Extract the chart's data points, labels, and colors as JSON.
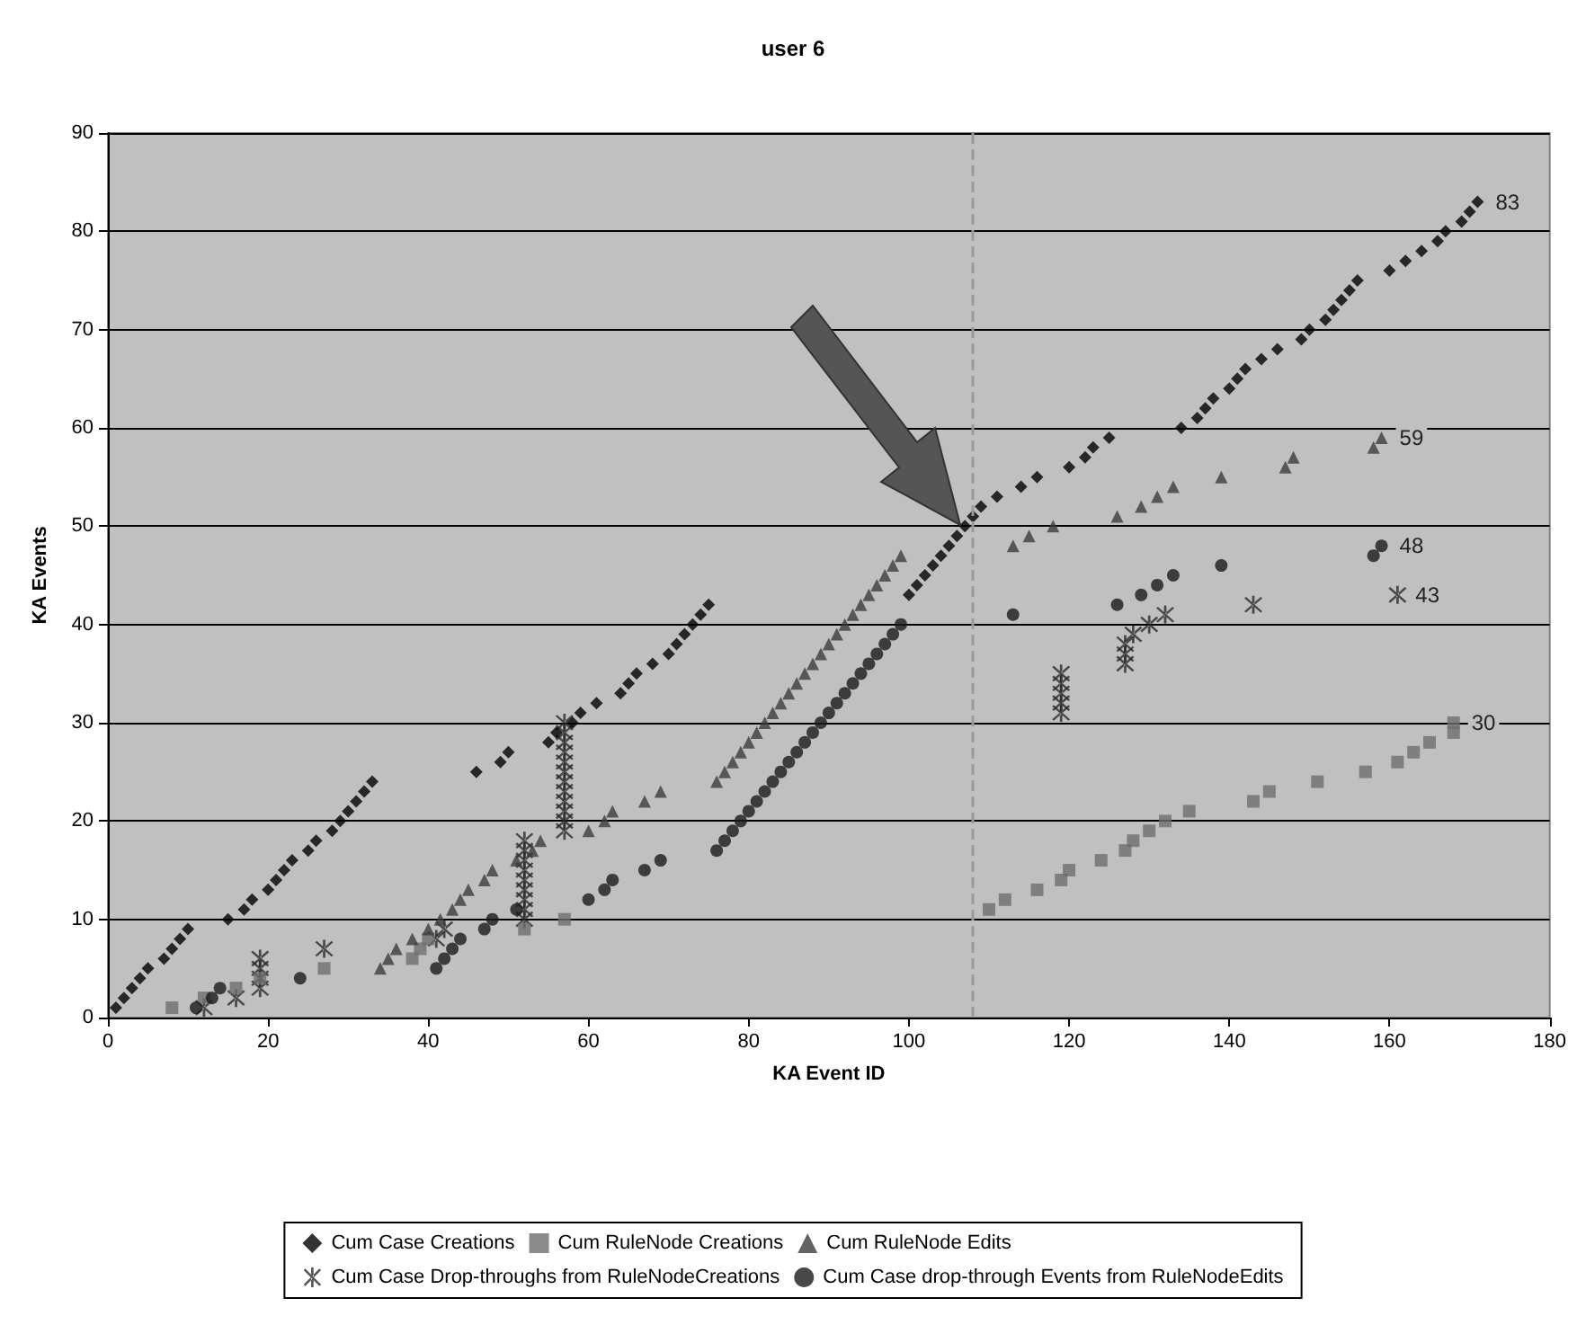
{
  "chart_data": {
    "type": "scatter",
    "title": "user 6",
    "xlabel": "KA Event ID",
    "ylabel": "KA Events",
    "xlim": [
      0,
      180
    ],
    "xticks": [
      0,
      20,
      40,
      60,
      80,
      100,
      120,
      140,
      160,
      180
    ],
    "ylim": [
      0,
      90
    ],
    "yticks": [
      0,
      10,
      20,
      30,
      40,
      50,
      60,
      70,
      80,
      90
    ],
    "grid": "y",
    "legend": "bottom",
    "series": [
      {
        "name": "Cum Case Creations",
        "color": "#000000",
        "marker": "diamond",
        "x": [
          1,
          2,
          3,
          4,
          5,
          7,
          8,
          9,
          10,
          15,
          17,
          18,
          20,
          21,
          22,
          23,
          25,
          26,
          28,
          29,
          30,
          31,
          32,
          33,
          46,
          49,
          50,
          55,
          56,
          58,
          59,
          61,
          64,
          65,
          66,
          68,
          70,
          71,
          72,
          73,
          74,
          75,
          100,
          101,
          102,
          103,
          104,
          105,
          106,
          107,
          108,
          109,
          111,
          114,
          116,
          120,
          122,
          123,
          125,
          134,
          136,
          137,
          138,
          140,
          141,
          142,
          144,
          146,
          149,
          150,
          152,
          153,
          154,
          155,
          156,
          160,
          162,
          164,
          166,
          167,
          169,
          170,
          171
        ],
        "values": [
          1,
          2,
          3,
          4,
          5,
          6,
          7,
          8,
          9,
          10,
          11,
          12,
          13,
          14,
          15,
          16,
          17,
          18,
          19,
          20,
          21,
          22,
          23,
          24,
          25,
          26,
          27,
          28,
          29,
          30,
          31,
          32,
          33,
          34,
          35,
          36,
          37,
          38,
          39,
          40,
          41,
          42,
          43,
          44,
          45,
          46,
          47,
          48,
          49,
          50,
          51,
          52,
          53,
          54,
          55,
          56,
          57,
          58,
          59,
          60,
          61,
          62,
          63,
          64,
          65,
          66,
          67,
          68,
          69,
          70,
          71,
          72,
          73,
          74,
          75,
          76,
          77,
          78,
          79,
          80,
          81,
          82,
          83
        ]
      },
      {
        "name": "Cum RuleNode Creations",
        "color": "#6e6e6e",
        "marker": "square",
        "x": [
          8,
          12,
          16,
          19,
          27,
          38,
          39,
          40,
          52,
          57,
          110,
          112,
          116,
          119,
          120,
          124,
          127,
          128,
          130,
          132,
          135,
          143,
          145,
          151,
          157,
          161,
          163,
          165,
          168,
          168
        ],
        "values": [
          1,
          2,
          3,
          4,
          5,
          6,
          7,
          8,
          9,
          10,
          11,
          12,
          13,
          14,
          15,
          16,
          17,
          18,
          19,
          20,
          21,
          22,
          23,
          24,
          25,
          26,
          27,
          28,
          29,
          30
        ]
      },
      {
        "name": "Cum RuleNode Edits",
        "color": "#3c3c3c",
        "marker": "triangle",
        "x": [
          34,
          35,
          36,
          38,
          40,
          41.5,
          43,
          44,
          45,
          47,
          48,
          51,
          53,
          54,
          60,
          62,
          63,
          67,
          69,
          76,
          77,
          78,
          79,
          80,
          81,
          82,
          83,
          84,
          85,
          86,
          87,
          88,
          89,
          90,
          91,
          92,
          93,
          94,
          95,
          96,
          97,
          98,
          99,
          113,
          115,
          118,
          126,
          129,
          131,
          133,
          139,
          147,
          148,
          158,
          159
        ],
        "values": [
          5,
          6,
          7,
          8,
          9,
          10,
          11,
          12,
          13,
          14,
          15,
          16,
          17,
          18,
          19,
          20,
          21,
          22,
          23,
          24,
          25,
          26,
          27,
          28,
          29,
          30,
          31,
          32,
          33,
          34,
          35,
          36,
          37,
          38,
          39,
          40,
          41,
          42,
          43,
          44,
          45,
          46,
          47,
          48,
          49,
          50,
          51,
          52,
          53,
          54,
          55,
          56,
          57,
          58,
          59
        ]
      },
      {
        "name": "Cum Case Drop-throughs from RuleNodeCreations",
        "color": "#2a2a2a",
        "marker": "cross",
        "x": [
          12,
          16,
          19,
          19,
          19,
          19,
          27,
          41,
          42,
          52,
          52,
          52,
          52,
          52,
          52,
          52,
          52,
          52,
          57,
          57,
          57,
          57,
          57,
          57,
          57,
          57,
          57,
          57,
          57,
          57,
          119,
          119,
          119,
          119,
          119,
          127,
          127,
          127,
          128,
          130,
          132,
          143,
          161
        ],
        "values": [
          1,
          2,
          3,
          4,
          5,
          6,
          7,
          8,
          9,
          10,
          11,
          12,
          13,
          14,
          15,
          16,
          17,
          18,
          19,
          20,
          21,
          22,
          23,
          24,
          25,
          26,
          27,
          28,
          29,
          30,
          31,
          32,
          33,
          34,
          35,
          36,
          37,
          38,
          39,
          40,
          41,
          42,
          43
        ]
      },
      {
        "name": "Cum Case drop-through Events from RuleNodeEdits",
        "color": "#1a1a1a",
        "marker": "circle",
        "x": [
          11,
          13,
          14,
          24,
          41,
          42,
          43,
          44,
          47,
          48,
          51,
          60,
          62,
          63,
          67,
          69,
          76,
          77,
          78,
          79,
          80,
          81,
          82,
          83,
          84,
          85,
          86,
          87,
          88,
          89,
          90,
          91,
          92,
          93,
          94,
          95,
          96,
          97,
          98,
          99,
          113,
          126,
          129,
          131,
          133,
          139,
          158,
          159
        ],
        "values": [
          1,
          2,
          3,
          4,
          5,
          6,
          7,
          8,
          9,
          10,
          11,
          12,
          13,
          14,
          15,
          16,
          17,
          18,
          19,
          20,
          21,
          22,
          23,
          24,
          25,
          26,
          27,
          28,
          29,
          30,
          31,
          32,
          33,
          34,
          35,
          36,
          37,
          38,
          39,
          40,
          41,
          42,
          43,
          44,
          45,
          46,
          47,
          48
        ]
      }
    ],
    "ref_lines": [
      {
        "axis": "x",
        "value": 108,
        "color": "#9a9a9a",
        "line_style": "dashed"
      }
    ],
    "annotations": [
      {
        "text": "83",
        "x": 171,
        "y": 83
      },
      {
        "text": "59",
        "x": 159,
        "y": 59
      },
      {
        "text": "48",
        "x": 159,
        "y": 48
      },
      {
        "text": "43",
        "x": 161,
        "y": 43
      },
      {
        "text": "30",
        "x": 168,
        "y": 30
      }
    ]
  }
}
